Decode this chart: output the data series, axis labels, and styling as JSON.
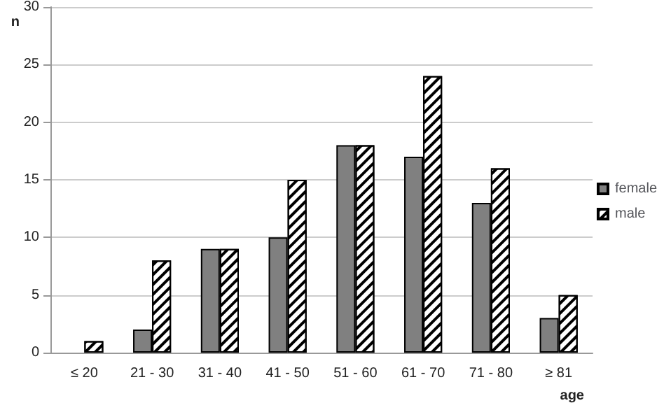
{
  "chart_data": {
    "type": "bar",
    "xlabel": "age",
    "ylabel": "n",
    "categories": [
      "≤ 20",
      "21 - 30",
      "31 - 40",
      "41 - 50",
      "51 - 60",
      "61 - 70",
      "71 - 80",
      "≥ 81"
    ],
    "series": [
      {
        "name": "female",
        "color": "#808080",
        "values": [
          0,
          2,
          9,
          10,
          18,
          17,
          13,
          3
        ]
      },
      {
        "name": "male",
        "color": "#ffffff",
        "values": [
          1,
          8,
          9,
          15,
          18,
          24,
          16,
          5
        ]
      }
    ],
    "ylim": [
      0,
      30
    ],
    "yticks": [
      0,
      5,
      10,
      15,
      20,
      25,
      30
    ],
    "grid": "y",
    "legend": "right"
  }
}
